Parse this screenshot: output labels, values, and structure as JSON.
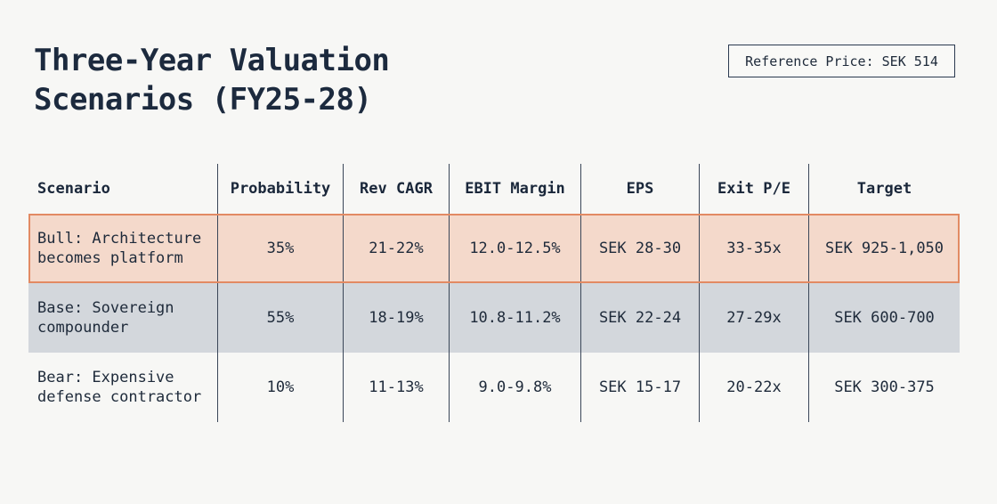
{
  "title": {
    "line1": "Three-Year Valuation",
    "line2": "Scenarios (FY25-28)"
  },
  "reference_price": "Reference Price: SEK 514",
  "table": {
    "headers": [
      "Scenario",
      "Probability",
      "Rev CAGR",
      "EBIT Margin",
      "EPS",
      "Exit P/E",
      "Target"
    ],
    "rows": [
      {
        "key": "bull",
        "highlight_color": "#e28a63",
        "cells": [
          "Bull: Architecture becomes platform",
          "35%",
          "21-22%",
          "12.0-12.5%",
          "SEK 28-30",
          "33-35x",
          "SEK 925-1,050"
        ]
      },
      {
        "key": "base",
        "cells": [
          "Base: Sovereign compounder",
          "55%",
          "18-19%",
          "10.8-11.2%",
          "SEK 22-24",
          "27-29x",
          "SEK 600-700"
        ]
      },
      {
        "key": "bear",
        "cells": [
          "Bear: Expensive defense contractor",
          "10%",
          "11-13%",
          "9.0-9.8%",
          "SEK 15-17",
          "20-22x",
          "SEK 300-375"
        ]
      }
    ]
  }
}
